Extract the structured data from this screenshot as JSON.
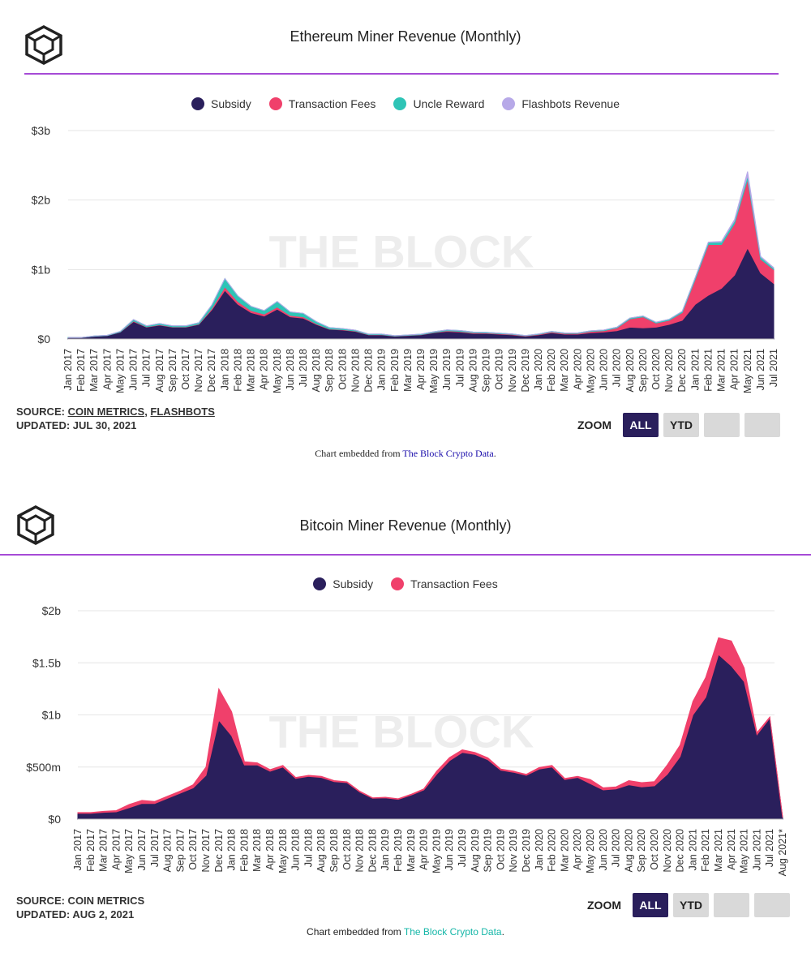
{
  "colors": {
    "subsidy": "#2a1f5c",
    "fees": "#f0406b",
    "uncle": "#2ec4b6",
    "flashbots": "#b7a9e8",
    "accent_line": "#a64bd6",
    "grid": "#e6e6e6",
    "watermark": "#ededed",
    "link_blue": "#1a0dab",
    "link_teal": "#16b7a8"
  },
  "eth": {
    "title": "Ethereum Miner Revenue (Monthly)",
    "legend": [
      "Subsidy",
      "Transaction Fees",
      "Uncle Reward",
      "Flashbots Revenue"
    ],
    "source_prefix": "SOURCE: ",
    "source_link1": "COIN METRICS",
    "source_sep": ", ",
    "source_link2": "FLASHBOTS",
    "updated": "UPDATED: JUL 30, 2021",
    "zoom_label": "ZOOM",
    "zoom_all": "ALL",
    "zoom_ytd": "YTD",
    "embed_prefix": "Chart embedded from ",
    "embed_link": "The Block Crypto Data",
    "embed_suffix": ".",
    "watermark": "THE BLOCK"
  },
  "btc": {
    "title": "Bitcoin Miner Revenue (Monthly)",
    "legend": [
      "Subsidy",
      "Transaction Fees"
    ],
    "source": "SOURCE: COIN METRICS",
    "updated": "UPDATED: AUG 2, 2021",
    "zoom_label": "ZOOM",
    "zoom_all": "ALL",
    "zoom_ytd": "YTD",
    "embed_prefix": "Chart embedded from ",
    "embed_link": "The Block Crypto Data",
    "embed_suffix": ".",
    "watermark": "THE BLOCK"
  },
  "chart_data": [
    {
      "type": "area",
      "stacked": true,
      "title": "Ethereum Miner Revenue (Monthly)",
      "unit": "billion USD",
      "ylim": [
        0,
        3
      ],
      "yticks": [
        0,
        1,
        2,
        3
      ],
      "ytick_labels": [
        "$0",
        "$1b",
        "$2b",
        "$3b"
      ],
      "grid": true,
      "legend_position": "top-center",
      "categories": [
        "Jan 2017",
        "Feb 2017",
        "Mar 2017",
        "Apr 2017",
        "May 2017",
        "Jun 2017",
        "Jul 2017",
        "Aug 2017",
        "Sep 2017",
        "Oct 2017",
        "Nov 2017",
        "Dec 2017",
        "Jan 2018",
        "Feb 2018",
        "Mar 2018",
        "Apr 2018",
        "May 2018",
        "Jun 2018",
        "Jul 2018",
        "Aug 2018",
        "Sep 2018",
        "Oct 2018",
        "Nov 2018",
        "Dec 2018",
        "Jan 2019",
        "Feb 2019",
        "Mar 2019",
        "Apr 2019",
        "May 2019",
        "Jun 2019",
        "Jul 2019",
        "Aug 2019",
        "Sep 2019",
        "Oct 2019",
        "Nov 2019",
        "Dec 2019",
        "Jan 2020",
        "Feb 2020",
        "Mar 2020",
        "Apr 2020",
        "May 2020",
        "Jun 2020",
        "Jul 2020",
        "Aug 2020",
        "Sep 2020",
        "Oct 2020",
        "Nov 2020",
        "Dec 2020",
        "Jan 2021",
        "Feb 2021",
        "Mar 2021",
        "Apr 2021",
        "May 2021",
        "Jun 2021",
        "Jul 2021"
      ],
      "series": [
        {
          "name": "Subsidy",
          "values": [
            0.02,
            0.02,
            0.04,
            0.05,
            0.1,
            0.25,
            0.17,
            0.2,
            0.17,
            0.17,
            0.21,
            0.42,
            0.7,
            0.5,
            0.38,
            0.33,
            0.43,
            0.32,
            0.3,
            0.21,
            0.14,
            0.13,
            0.11,
            0.06,
            0.06,
            0.04,
            0.05,
            0.06,
            0.09,
            0.11,
            0.1,
            0.08,
            0.08,
            0.07,
            0.06,
            0.04,
            0.06,
            0.09,
            0.07,
            0.07,
            0.09,
            0.1,
            0.12,
            0.17,
            0.16,
            0.17,
            0.21,
            0.27,
            0.5,
            0.63,
            0.73,
            0.92,
            1.31,
            0.95,
            0.8
          ]
        },
        {
          "name": "Transaction Fees",
          "values": [
            0,
            0,
            0,
            0,
            0.002,
            0.01,
            0.005,
            0.005,
            0.005,
            0.005,
            0.005,
            0.02,
            0.05,
            0.04,
            0.03,
            0.03,
            0.03,
            0.02,
            0.02,
            0.01,
            0.005,
            0.005,
            0.005,
            0.003,
            0.003,
            0.002,
            0.002,
            0.003,
            0.005,
            0.01,
            0.01,
            0.01,
            0.008,
            0.007,
            0.006,
            0.005,
            0.006,
            0.012,
            0.01,
            0.01,
            0.02,
            0.02,
            0.04,
            0.12,
            0.16,
            0.06,
            0.06,
            0.11,
            0.36,
            0.73,
            0.63,
            0.74,
            0.99,
            0.2,
            0.2
          ]
        },
        {
          "name": "Uncle Reward",
          "values": [
            0.002,
            0.002,
            0.003,
            0.004,
            0.008,
            0.02,
            0.015,
            0.018,
            0.015,
            0.015,
            0.02,
            0.05,
            0.12,
            0.08,
            0.06,
            0.05,
            0.08,
            0.05,
            0.05,
            0.03,
            0.02,
            0.015,
            0.012,
            0.008,
            0.008,
            0.006,
            0.006,
            0.007,
            0.01,
            0.012,
            0.012,
            0.01,
            0.009,
            0.008,
            0.007,
            0.005,
            0.006,
            0.008,
            0.007,
            0.007,
            0.008,
            0.009,
            0.01,
            0.012,
            0.012,
            0.012,
            0.014,
            0.018,
            0.025,
            0.03,
            0.035,
            0.04,
            0.05,
            0.03,
            0.02
          ]
        },
        {
          "name": "Flashbots Revenue",
          "values": [
            0,
            0,
            0,
            0,
            0,
            0,
            0,
            0,
            0,
            0,
            0,
            0,
            0,
            0,
            0,
            0,
            0,
            0,
            0,
            0,
            0,
            0,
            0,
            0,
            0,
            0,
            0,
            0,
            0,
            0,
            0,
            0,
            0,
            0,
            0,
            0,
            0,
            0,
            0,
            0,
            0,
            0,
            0,
            0,
            0,
            0,
            0,
            0,
            0,
            0.005,
            0.01,
            0.02,
            0.06,
            0.01,
            0.01
          ]
        }
      ]
    },
    {
      "type": "area",
      "stacked": true,
      "title": "Bitcoin Miner Revenue (Monthly)",
      "unit": "million USD",
      "ylim": [
        0,
        2000
      ],
      "yticks": [
        0,
        500,
        1000,
        1500,
        2000
      ],
      "ytick_labels": [
        "$0",
        "$500m",
        "$1b",
        "$1.5b",
        "$2b"
      ],
      "grid": true,
      "legend_position": "top-center",
      "categories": [
        "Jan 2017",
        "Feb 2017",
        "Mar 2017",
        "Apr 2017",
        "May 2017",
        "Jun 2017",
        "Jul 2017",
        "Aug 2017",
        "Sep 2017",
        "Oct 2017",
        "Nov 2017",
        "Dec 2017",
        "Jan 2018",
        "Feb 2018",
        "Mar 2018",
        "Apr 2018",
        "May 2018",
        "Jun 2018",
        "Jul 2018",
        "Aug 2018",
        "Sep 2018",
        "Oct 2018",
        "Nov 2018",
        "Dec 2018",
        "Jan 2019",
        "Feb 2019",
        "Mar 2019",
        "Apr 2019",
        "May 2019",
        "Jun 2019",
        "Jul 2019",
        "Aug 2019",
        "Sep 2019",
        "Oct 2019",
        "Nov 2019",
        "Dec 2019",
        "Jan 2020",
        "Feb 2020",
        "Mar 2020",
        "Apr 2020",
        "May 2020",
        "Jun 2020",
        "Jul 2020",
        "Aug 2020",
        "Sep 2020",
        "Oct 2020",
        "Nov 2020",
        "Dec 2020",
        "Jan 2021",
        "Feb 2021",
        "Mar 2021",
        "Apr 2021",
        "May 2021",
        "Jun 2021",
        "Jul 2021",
        "Aug 2021*"
      ],
      "series": [
        {
          "name": "Subsidy",
          "values": [
            55,
            55,
            65,
            70,
            110,
            150,
            150,
            200,
            250,
            300,
            420,
            950,
            800,
            520,
            520,
            460,
            500,
            390,
            410,
            400,
            360,
            350,
            260,
            200,
            205,
            190,
            230,
            280,
            430,
            560,
            640,
            620,
            570,
            470,
            450,
            420,
            480,
            500,
            380,
            400,
            340,
            280,
            290,
            330,
            310,
            320,
            430,
            600,
            1000,
            1170,
            1580,
            1470,
            1320,
            810,
            970,
            15
          ]
        },
        {
          "name": "Transaction Fees",
          "values": [
            8,
            8,
            10,
            12,
            30,
            30,
            20,
            20,
            20,
            30,
            80,
            300,
            230,
            30,
            20,
            15,
            15,
            10,
            10,
            10,
            10,
            8,
            8,
            5,
            5,
            5,
            8,
            10,
            30,
            30,
            25,
            20,
            18,
            10,
            10,
            10,
            15,
            15,
            10,
            10,
            40,
            20,
            20,
            40,
            40,
            40,
            90,
            110,
            130,
            190,
            160,
            240,
            130,
            20,
            10,
            2
          ]
        }
      ]
    }
  ]
}
